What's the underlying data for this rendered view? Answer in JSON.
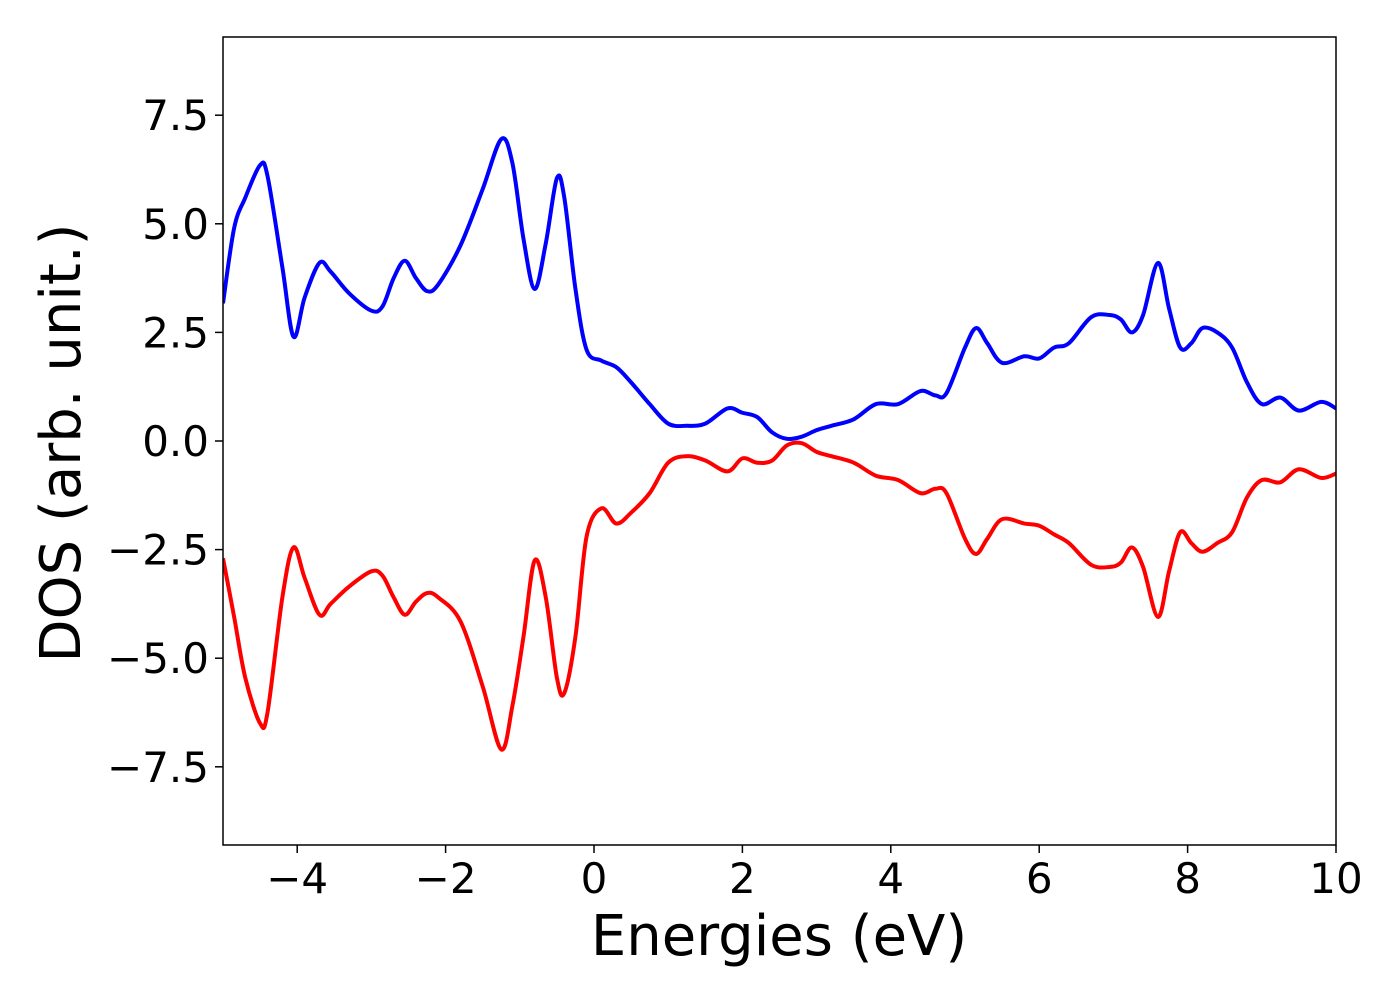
{
  "chart_data": {
    "type": "line",
    "xlabel": "Energies (eV)",
    "ylabel": "DOS (arb. unit.)",
    "x": [
      -5,
      -4.85,
      -4.7,
      -4.5,
      -4.4,
      -4.2,
      -4.05,
      -3.9,
      -3.7,
      -3.55,
      -3.3,
      -3.0,
      -2.85,
      -2.7,
      -2.55,
      -2.4,
      -2.25,
      -2.1,
      -1.8,
      -1.5,
      -1.25,
      -1.1,
      -0.95,
      -0.8,
      -0.65,
      -0.5,
      -0.4,
      -0.25,
      -0.1,
      0.1,
      0.3,
      0.5,
      0.75,
      1.0,
      1.25,
      1.5,
      1.8,
      2.0,
      2.2,
      2.4,
      2.6,
      2.8,
      3.0,
      3.2,
      3.5,
      3.8,
      4.1,
      4.4,
      4.6,
      4.75,
      5.0,
      5.15,
      5.3,
      5.5,
      5.8,
      6.0,
      6.2,
      6.4,
      6.7,
      6.95,
      7.1,
      7.25,
      7.4,
      7.6,
      7.75,
      7.9,
      8.05,
      8.2,
      8.4,
      8.6,
      8.8,
      9.0,
      9.25,
      9.5,
      9.8,
      10
    ],
    "series": [
      {
        "color": "#0000ff",
        "values": [
          3.17,
          4.9,
          5.6,
          6.35,
          6.1,
          4.0,
          2.4,
          3.3,
          4.1,
          3.9,
          3.4,
          3.0,
          3.1,
          3.75,
          4.15,
          3.75,
          3.45,
          3.6,
          4.5,
          5.8,
          6.95,
          6.4,
          4.65,
          3.5,
          4.55,
          6.05,
          5.6,
          3.5,
          2.1,
          1.85,
          1.7,
          1.35,
          0.85,
          0.4,
          0.35,
          0.4,
          0.75,
          0.65,
          0.55,
          0.2,
          0.05,
          0.1,
          0.25,
          0.35,
          0.5,
          0.85,
          0.85,
          1.15,
          1.05,
          1.1,
          2.15,
          2.6,
          2.25,
          1.8,
          1.95,
          1.9,
          2.15,
          2.25,
          2.85,
          2.9,
          2.8,
          2.5,
          2.9,
          4.1,
          3.05,
          2.15,
          2.25,
          2.6,
          2.5,
          2.15,
          1.35,
          0.85,
          1.0,
          0.7,
          0.9,
          0.75
        ]
      },
      {
        "color": "#ff0000",
        "values": [
          -2.7,
          -4.05,
          -5.45,
          -6.5,
          -6.25,
          -3.6,
          -2.45,
          -3.15,
          -4.0,
          -3.75,
          -3.35,
          -3.0,
          -3.1,
          -3.6,
          -4.0,
          -3.7,
          -3.5,
          -3.6,
          -4.15,
          -5.65,
          -7.1,
          -6.1,
          -4.5,
          -2.75,
          -3.6,
          -5.45,
          -5.8,
          -4.5,
          -2.2,
          -1.55,
          -1.9,
          -1.65,
          -1.2,
          -0.5,
          -0.35,
          -0.45,
          -0.7,
          -0.4,
          -0.5,
          -0.45,
          -0.1,
          -0.05,
          -0.25,
          -0.35,
          -0.5,
          -0.8,
          -0.9,
          -1.2,
          -1.1,
          -1.2,
          -2.25,
          -2.6,
          -2.25,
          -1.8,
          -1.9,
          -1.95,
          -2.15,
          -2.35,
          -2.85,
          -2.9,
          -2.8,
          -2.45,
          -2.9,
          -4.05,
          -3.0,
          -2.1,
          -2.35,
          -2.55,
          -2.35,
          -2.1,
          -1.3,
          -0.9,
          -0.95,
          -0.65,
          -0.85,
          -0.75
        ]
      }
    ],
    "xlim": [
      -5,
      10
    ],
    "xticks": [
      {
        "value": -4,
        "label": "−4"
      },
      {
        "value": -2,
        "label": "−2"
      },
      0,
      2,
      4,
      6,
      8,
      10
    ],
    "ylim": [
      -9.3,
      9.3
    ],
    "yticks": [
      {
        "value": -7.5,
        "label": "−7.5"
      },
      {
        "value": -5,
        "label": "−5.0"
      },
      {
        "value": -2.5,
        "label": "−2.5"
      },
      {
        "value": 0,
        "label": "0.0"
      },
      {
        "value": 2.5,
        "label": "2.5"
      },
      {
        "value": 5,
        "label": "5.0"
      },
      {
        "value": 7.5,
        "label": "7.5"
      }
    ],
    "grid": false,
    "line_width": 4
  }
}
